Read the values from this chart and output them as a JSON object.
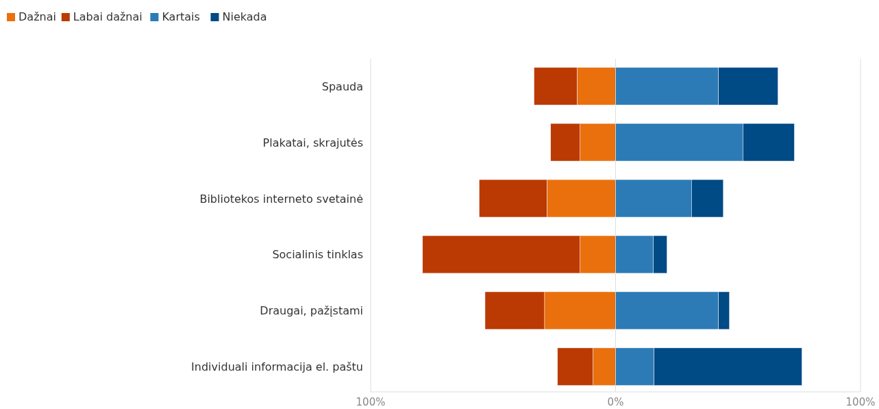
{
  "chart_data": {
    "type": "bar",
    "orientation": "horizontal",
    "stacked": true,
    "categories": [
      "Spauda",
      "Plakatai, skrajutės",
      "Bibliotekos interneto svetainė",
      "Socialinis tinklas",
      "Draugai, pažįstami",
      "Individuali informacija el. paštu"
    ],
    "series": [
      {
        "name": "Dažnai",
        "color": "#ea700d",
        "values": [
          -15.7,
          -14.5,
          -28,
          -14.5,
          -29,
          -9.2
        ]
      },
      {
        "name": "Labai dažnai",
        "color": "#bb3a03",
        "values": [
          -17.6,
          -12,
          -27.7,
          -64.3,
          -24.3,
          -14.5
        ]
      },
      {
        "name": "Kartais",
        "color": "#2c7bb6",
        "values": [
          42,
          52,
          31,
          15.4,
          42,
          15.7
        ]
      },
      {
        "name": "Niekada",
        "color": "#004a86",
        "values": [
          24.3,
          21,
          13,
          5.6,
          4.5,
          60.4
        ]
      }
    ],
    "xlim": [
      -100,
      100
    ],
    "xticks": [
      {
        "value": -100,
        "label": "100%"
      },
      {
        "value": 0,
        "label": "0%"
      },
      {
        "value": 100,
        "label": "100%"
      }
    ],
    "grid": "x",
    "legend": "top left"
  }
}
